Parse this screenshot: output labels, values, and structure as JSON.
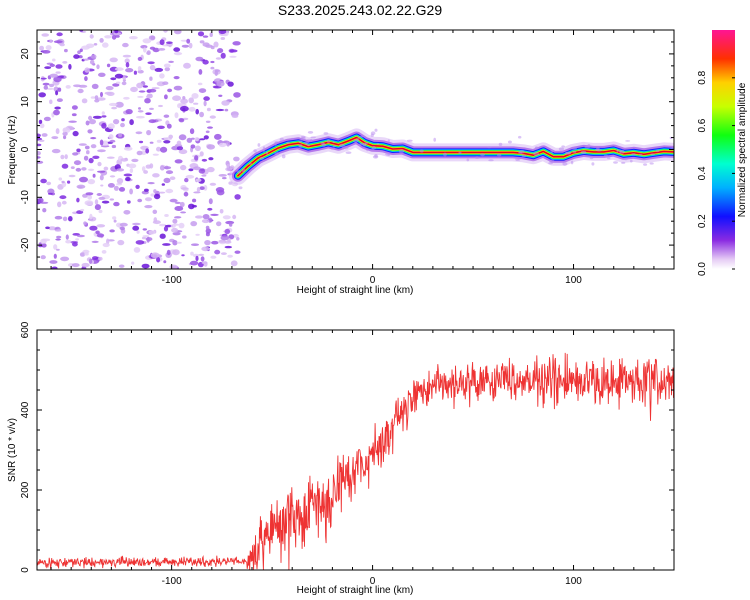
{
  "title": "S233.2025.243.02.22.G29",
  "chart_data": [
    {
      "type": "heatmap",
      "name": "spectrogram",
      "xlabel": "Height of straight line (km)",
      "ylabel": "Frequency (Hz)",
      "xlim": [
        -167,
        150
      ],
      "ylim": [
        -25,
        25
      ],
      "x_ticks": [
        -100,
        0,
        100
      ],
      "y_ticks": [
        -20,
        -10,
        0,
        10,
        20
      ],
      "noise_region_x": [
        -167,
        -67
      ],
      "signal_trace": {
        "x": [
          -67,
          -62,
          -57,
          -52,
          -47,
          -42,
          -37,
          -32,
          -27,
          -22,
          -17,
          -12,
          -8,
          -4,
          0,
          5,
          10,
          15,
          20,
          30,
          40,
          50,
          60,
          70,
          75,
          80,
          85,
          90,
          95,
          100,
          105,
          110,
          115,
          120,
          125,
          130,
          135,
          140,
          145,
          150
        ],
        "y": [
          -5.5,
          -3.5,
          -1.8,
          -0.8,
          0.3,
          1,
          1.3,
          0.6,
          1,
          1.5,
          1,
          1.8,
          2.5,
          1.4,
          0.8,
          0.7,
          0.1,
          0.2,
          -0.6,
          -0.6,
          -0.6,
          -0.6,
          -0.6,
          -0.6,
          -0.8,
          -1.2,
          -0.4,
          -1.5,
          -1.5,
          -0.7,
          -0.3,
          -0.5,
          -0.5,
          -0.2,
          -0.9,
          -0.7,
          -1,
          -0.7,
          -0.4,
          -0.5
        ]
      },
      "colorbar": {
        "label": "Normalized spectral amplitude",
        "range": [
          0,
          1
        ],
        "ticks": [
          0.0,
          0.2,
          0.4,
          0.6,
          0.8
        ],
        "tick_labels": [
          "0.0",
          "0.2",
          "0.4",
          "0.6",
          "0.8"
        ]
      }
    },
    {
      "type": "line",
      "name": "snr",
      "xlabel": "Height of straight line (km)",
      "ylabel": "SNR (10 * v/v)",
      "xlim": [
        -167,
        150
      ],
      "ylim": [
        0,
        600
      ],
      "x_ticks": [
        -100,
        0,
        100
      ],
      "y_ticks": [
        0,
        200,
        400,
        600
      ],
      "color": "#ee3333",
      "envelope": {
        "x": [
          -167,
          -62,
          -58,
          -50,
          -40,
          -30,
          -20,
          -10,
          0,
          10,
          20,
          30,
          50,
          70,
          90,
          110,
          130,
          150
        ],
        "mean": [
          18,
          22,
          60,
          100,
          130,
          160,
          200,
          250,
          290,
          360,
          430,
          460,
          470,
          480,
          470,
          470,
          470,
          470
        ],
        "noise": [
          10,
          10,
          60,
          70,
          65,
          60,
          60,
          55,
          50,
          45,
          40,
          40,
          40,
          40,
          55,
          50,
          50,
          50
        ]
      }
    }
  ]
}
